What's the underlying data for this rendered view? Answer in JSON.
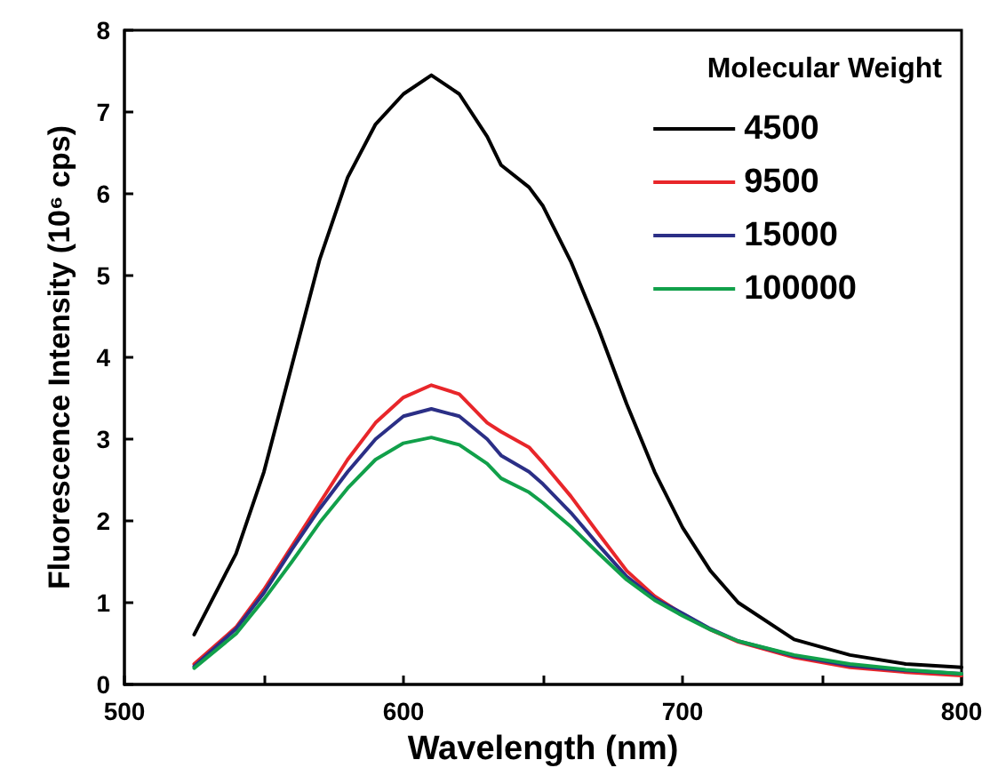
{
  "chart_data": {
    "type": "line",
    "xlabel": "Wavelength (nm)",
    "ylabel": "Fluorescence Intensity (10⁶ cps)",
    "legend_title": "Molecular Weight",
    "legend": "top right",
    "grid": false,
    "marker": "none",
    "line_style": "solid",
    "x": [
      525,
      540,
      550,
      560,
      570,
      580,
      590,
      600,
      610,
      620,
      630,
      635,
      645,
      650,
      660,
      670,
      680,
      690,
      700,
      710,
      720,
      740,
      760,
      780,
      800
    ],
    "xlim": [
      500,
      800
    ],
    "xticks": [
      500,
      {
        "value": 550,
        "label": null
      },
      600,
      {
        "value": 650,
        "label": null
      },
      700,
      {
        "value": 750,
        "label": null
      },
      800
    ],
    "ylim": [
      0,
      8
    ],
    "yticks": [
      0,
      1,
      2,
      3,
      4,
      5,
      6,
      7,
      8
    ],
    "series": [
      {
        "name": "4500",
        "color": "#000000",
        "values": [
          0.61,
          1.6,
          2.6,
          3.9,
          5.2,
          6.2,
          6.85,
          7.22,
          7.45,
          7.22,
          6.7,
          6.35,
          6.08,
          5.85,
          5.17,
          4.34,
          3.43,
          2.6,
          1.92,
          1.39,
          1.0,
          0.55,
          0.36,
          0.25,
          0.21
        ]
      },
      {
        "name": "9500",
        "color": "#e8262a",
        "values": [
          0.25,
          0.7,
          1.16,
          1.69,
          2.22,
          2.75,
          3.2,
          3.51,
          3.66,
          3.55,
          3.2,
          3.09,
          2.9,
          2.71,
          2.3,
          1.84,
          1.39,
          1.08,
          0.86,
          0.67,
          0.52,
          0.33,
          0.21,
          0.15,
          0.11
        ]
      },
      {
        "name": "15000",
        "color": "#2b2f86",
        "values": [
          0.22,
          0.68,
          1.12,
          1.65,
          2.15,
          2.6,
          3.0,
          3.28,
          3.37,
          3.28,
          3.0,
          2.8,
          2.6,
          2.45,
          2.1,
          1.7,
          1.32,
          1.05,
          0.87,
          0.68,
          0.53,
          0.35,
          0.23,
          0.17,
          0.13
        ]
      },
      {
        "name": "100000",
        "color": "#11a04a",
        "values": [
          0.2,
          0.62,
          1.04,
          1.5,
          1.98,
          2.4,
          2.75,
          2.95,
          3.02,
          2.93,
          2.7,
          2.52,
          2.35,
          2.22,
          1.93,
          1.6,
          1.28,
          1.03,
          0.84,
          0.67,
          0.53,
          0.36,
          0.25,
          0.18,
          0.13
        ]
      }
    ]
  }
}
